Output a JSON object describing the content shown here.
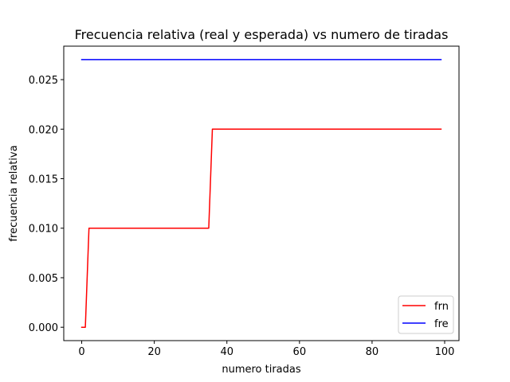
{
  "chart_data": {
    "type": "line",
    "title": "Frecuencia relativa (real y esperada) vs numero de tiradas",
    "xlabel": "numero tiradas",
    "ylabel": "frecuencia relativa",
    "xlim": [
      -4.95,
      103.95
    ],
    "ylim": [
      -0.00135,
      0.02838
    ],
    "xticks": [
      0,
      20,
      40,
      60,
      80,
      100
    ],
    "xtick_labels": [
      "0",
      "20",
      "40",
      "60",
      "80",
      "100"
    ],
    "yticks": [
      0.0,
      0.005,
      0.01,
      0.015,
      0.02,
      0.025
    ],
    "ytick_labels": [
      "0.000",
      "0.005",
      "0.010",
      "0.015",
      "0.020",
      "0.025"
    ],
    "grid": false,
    "legend_position": "lower right",
    "series": [
      {
        "name": "frn",
        "color": "#ff0000",
        "x": [
          0,
          1,
          2,
          35,
          36,
          99
        ],
        "y": [
          0.0,
          0.0,
          0.01,
          0.01,
          0.02,
          0.02
        ]
      },
      {
        "name": "fre",
        "color": "#0000ff",
        "x": [
          0,
          99
        ],
        "y": [
          0.027027,
          0.027027
        ]
      }
    ]
  }
}
